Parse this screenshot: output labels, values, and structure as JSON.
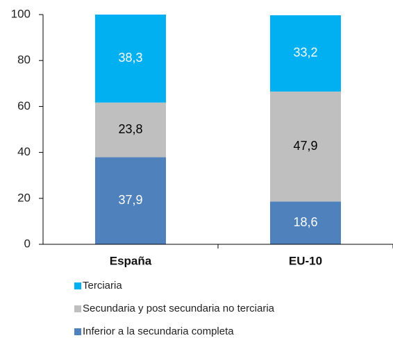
{
  "chart_data": {
    "type": "stacked_bar",
    "categories": [
      "España",
      "EU-10"
    ],
    "series": [
      {
        "name": "Inferior a la secundaria completa",
        "color": "#4f81bd",
        "values": [
          37.9,
          18.6
        ],
        "value_labels": [
          "37,9",
          "18,6"
        ]
      },
      {
        "name": "Secundaria y post secundaria no terciaria",
        "color": "#bfbfbf",
        "values": [
          23.8,
          47.9
        ],
        "value_labels": [
          "23,8",
          "47,9"
        ]
      },
      {
        "name": "Terciaria",
        "color": "#00b0f0",
        "values": [
          38.3,
          33.2
        ],
        "value_labels": [
          "38,3",
          "33,2"
        ]
      }
    ],
    "ylim": [
      0,
      100
    ],
    "yticks": [
      0,
      20,
      40,
      60,
      80,
      100
    ],
    "grid": false
  }
}
